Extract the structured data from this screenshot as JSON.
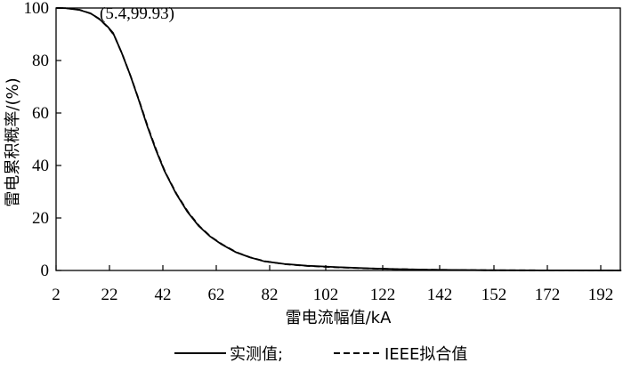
{
  "chart_data": {
    "type": "line",
    "xlabel": "雷电流幅值/kA",
    "ylabel": "雷电累积概率/(%)",
    "xlim": [
      2,
      200
    ],
    "ylim": [
      0,
      100
    ],
    "xticks": [
      2,
      22,
      42,
      62,
      82,
      102,
      122,
      142,
      152,
      172,
      192
    ],
    "yticks": [
      0,
      20,
      40,
      60,
      80,
      100
    ],
    "grid": false,
    "legend": "bottom",
    "annotation": {
      "text": "(5.4,99.93)",
      "x": 5.4,
      "y": 99.93
    },
    "series": [
      {
        "name": "实测值;",
        "style": "solid",
        "color": "#000000",
        "x": [
          2,
          5.4,
          10,
          14,
          17,
          20,
          22,
          25,
          28,
          31,
          34,
          37,
          40,
          44,
          48,
          52,
          56,
          60,
          65,
          70,
          75,
          82,
          90,
          102,
          112,
          122,
          132,
          142,
          152,
          172,
          192,
          200
        ],
        "y": [
          100,
          99.93,
          99.3,
          98,
          96,
          93,
          90.5,
          83,
          74.5,
          65,
          55,
          46,
          38,
          29.5,
          22.5,
          17,
          13,
          10,
          7,
          5,
          3.5,
          2.5,
          1.8,
          1.2,
          0.8,
          0.5,
          0.3,
          0.2,
          0.1,
          0.05,
          0.02,
          0.01
        ]
      },
      {
        "name": "IEEE拟合值",
        "style": "dashed",
        "color": "#000000",
        "x": [
          2,
          5.4,
          10,
          14,
          17,
          20,
          22,
          25,
          28,
          31,
          34,
          37,
          40,
          44,
          48,
          52,
          56,
          60,
          65,
          70,
          75,
          82,
          90,
          102,
          112,
          122,
          132,
          142,
          152,
          172,
          192,
          200
        ],
        "y": [
          100,
          99.93,
          99.3,
          97.8,
          95.6,
          92.4,
          89.6,
          82,
          73.4,
          64,
          54.2,
          45.3,
          37.3,
          29,
          22.2,
          16.8,
          12.8,
          9.9,
          6.9,
          4.9,
          3.5,
          2.4,
          1.7,
          1.1,
          0.75,
          0.5,
          0.3,
          0.2,
          0.1,
          0.05,
          0.02,
          0.01
        ]
      }
    ]
  }
}
